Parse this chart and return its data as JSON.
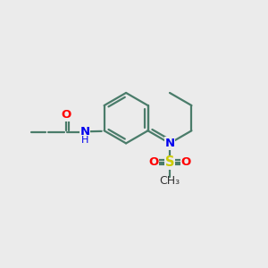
{
  "bg_color": "#ebebeb",
  "bond_color": "#4a7c6a",
  "bond_width": 1.6,
  "atom_colors": {
    "O": "#ff0000",
    "N": "#0000ee",
    "S": "#cccc00",
    "C": "#000000"
  },
  "font_size": 9.5,
  "fig_size": [
    3.0,
    3.0
  ],
  "dpi": 100
}
